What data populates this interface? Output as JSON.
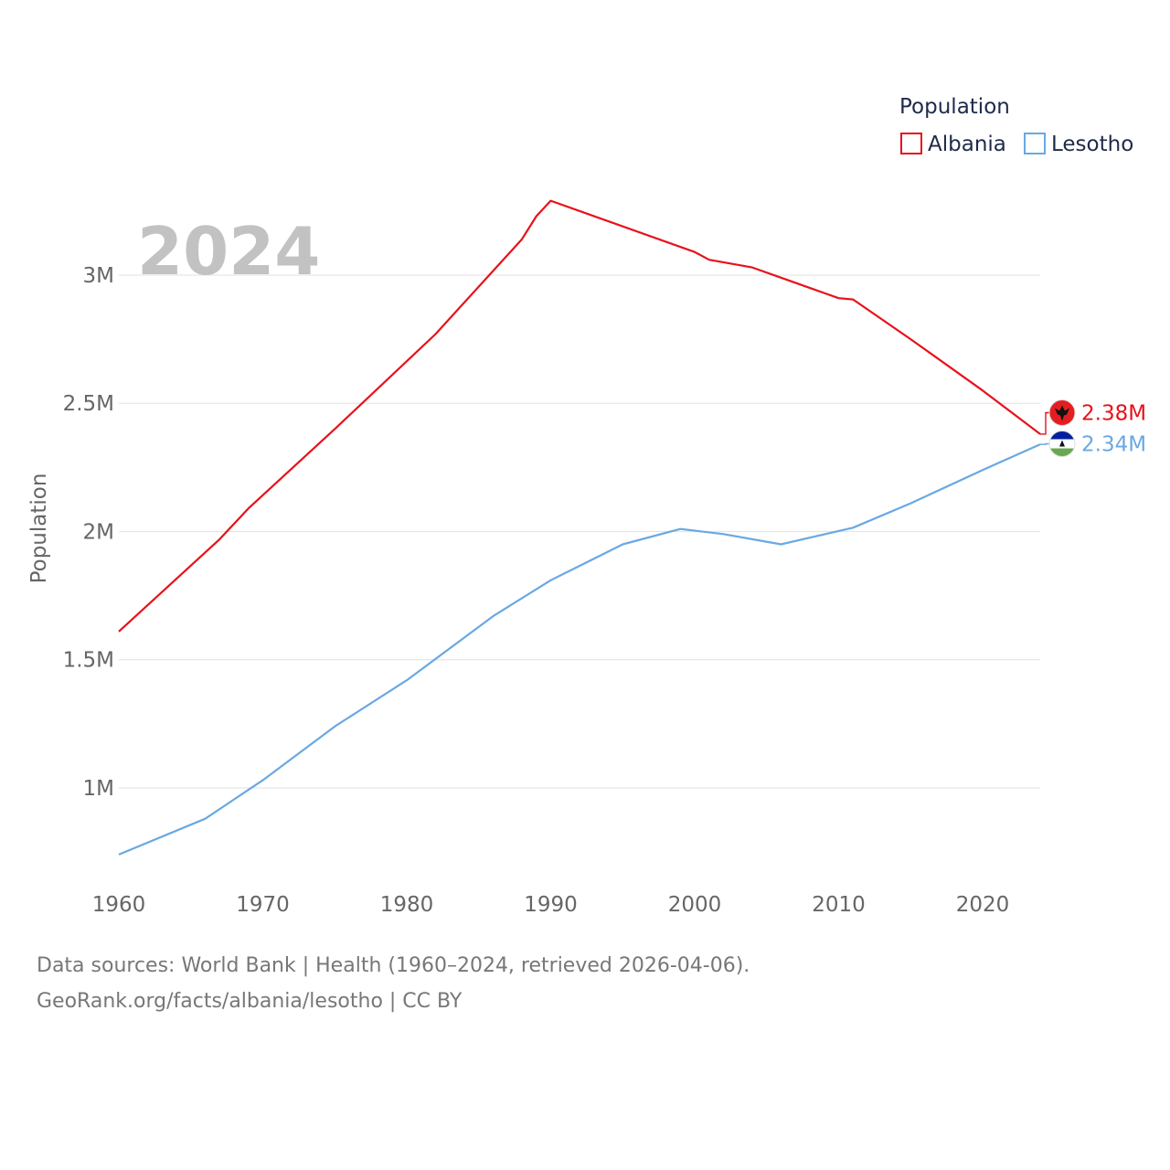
{
  "chart_data": {
    "type": "line",
    "ylabel": "Population",
    "xlabel": "",
    "year_label": "2024",
    "legend": {
      "title": "Population",
      "position": "top-right"
    },
    "xlim": [
      1960,
      2024
    ],
    "ylim": [
      615000,
      3360000
    ],
    "x_ticks": [
      1960,
      1970,
      1980,
      1990,
      2000,
      2010,
      2020
    ],
    "y_ticks": [
      {
        "value": 1000000,
        "label": "1M"
      },
      {
        "value": 1500000,
        "label": "1.5M"
      },
      {
        "value": 2000000,
        "label": "2M"
      },
      {
        "value": 2500000,
        "label": "2.5M"
      },
      {
        "value": 3000000,
        "label": "3M"
      }
    ],
    "series": [
      {
        "name": "Albania",
        "color": "#e8111a",
        "flag": "albania-flag",
        "end_label": "2.38M",
        "x": [
          1960,
          1967,
          1969,
          1975,
          1982,
          1988,
          1989,
          1990,
          2000,
          2001,
          2004,
          2006,
          2009,
          2010,
          2011,
          2015,
          2020,
          2024
        ],
        "values": [
          1610000,
          1970000,
          2090000,
          2400000,
          2770000,
          3140000,
          3230000,
          3290000,
          3090000,
          3060000,
          3030000,
          2990000,
          2930000,
          2910000,
          2905000,
          2750000,
          2550000,
          2380000
        ]
      },
      {
        "name": "Lesotho",
        "color": "#6aa8e3",
        "flag": "lesotho-flag",
        "end_label": "2.34M",
        "x": [
          1960,
          1966,
          1970,
          1975,
          1980,
          1986,
          1990,
          1995,
          1999,
          2002,
          2006,
          2011,
          2015,
          2020,
          2024
        ],
        "values": [
          740000,
          880000,
          1030000,
          1240000,
          1420000,
          1670000,
          1810000,
          1950000,
          2010000,
          1990000,
          1950000,
          2015000,
          2110000,
          2240000,
          2340000
        ]
      }
    ]
  },
  "footer": {
    "sources": "Data sources: World Bank | Health (1960–2024, retrieved 2026-04-06).",
    "credit": "GeoRank.org/facts/albania/lesotho | CC BY"
  }
}
